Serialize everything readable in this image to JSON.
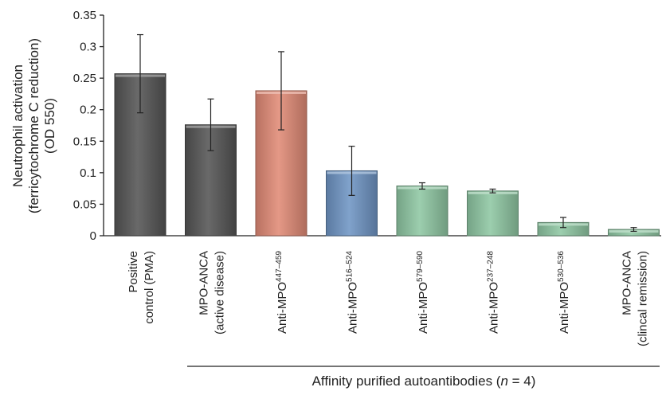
{
  "chart_data": {
    "type": "bar",
    "ylabel_lines": [
      "Neutrophil activation",
      "(ferricytochrome C reduction)",
      "(OD 550)"
    ],
    "ylim": [
      0,
      0.35
    ],
    "yticks": [
      "0",
      "0.05",
      "0.1",
      "0.15",
      "0.2",
      "0.25",
      "0.3",
      "0.35"
    ],
    "grid": false,
    "categories": [
      {
        "lines": [
          {
            "base": "Positive",
            "sup": ""
          },
          {
            "base": "control (PMA)",
            "sup": ""
          }
        ]
      },
      {
        "lines": [
          {
            "base": "MPO-ANCA",
            "sup": ""
          },
          {
            "base": "(active disease)",
            "sup": ""
          }
        ]
      },
      {
        "lines": [
          {
            "base": "Anti-MPO",
            "sup": "447–459"
          }
        ]
      },
      {
        "lines": [
          {
            "base": "Anti-MPO",
            "sup": "516–524"
          }
        ]
      },
      {
        "lines": [
          {
            "base": "Anti-MPO",
            "sup": "579–590"
          }
        ]
      },
      {
        "lines": [
          {
            "base": "Anti-MPO",
            "sup": "237–248"
          }
        ]
      },
      {
        "lines": [
          {
            "base": "Anti-MPO",
            "sup": "530–536"
          }
        ]
      },
      {
        "lines": [
          {
            "base": "MPO-ANCA",
            "sup": ""
          },
          {
            "base": "(clincal remission)",
            "sup": ""
          }
        ]
      }
    ],
    "values": [
      0.257,
      0.176,
      0.23,
      0.103,
      0.079,
      0.071,
      0.021,
      0.01
    ],
    "error": [
      0.062,
      0.041,
      0.062,
      0.039,
      0.005,
      0.003,
      0.008,
      0.003
    ],
    "colors": [
      "#555555",
      "#555555",
      "#e08a76",
      "#6f95c4",
      "#8fc7a3",
      "#8fc7a3",
      "#8fc7a3",
      "#8fc7a3"
    ],
    "group_label_prefix": "Affinity purified autoantibodies (",
    "group_label_italic": "n",
    "group_label_suffix": " = 4)"
  }
}
